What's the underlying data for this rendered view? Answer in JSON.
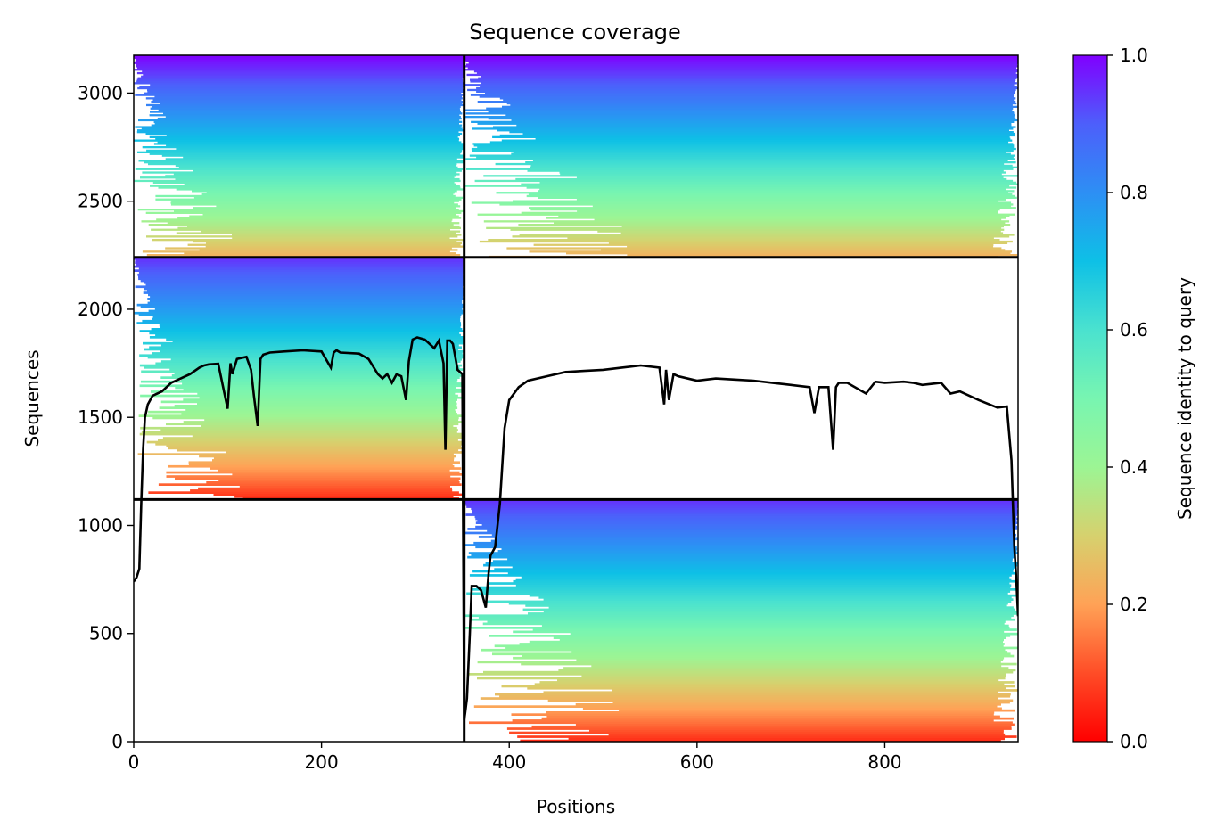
{
  "chart_data": {
    "type": "heatmap",
    "title": "Sequence coverage",
    "xlabel": "Positions",
    "ylabel": "Sequences",
    "xlim": [
      0,
      942
    ],
    "ylim": [
      0,
      3175
    ],
    "x_ticks": [
      0,
      200,
      400,
      600,
      800
    ],
    "y_ticks": [
      0,
      500,
      1000,
      1500,
      2000,
      2500,
      3000
    ],
    "colorbar": {
      "label": "Sequence identity to query",
      "range": [
        0,
        1
      ],
      "ticks": [
        0.0,
        0.2,
        0.4,
        0.6,
        0.8,
        1.0
      ],
      "colormap": "rainbow_r"
    },
    "block_boundaries": {
      "x": [
        352
      ],
      "y": [
        1120,
        2240
      ]
    },
    "blocks": [
      {
        "rows": [
          2240,
          3175
        ],
        "cols": [
          0,
          352
        ],
        "identity_top": 1.0,
        "identity_bottom": 0.22
      },
      {
        "rows": [
          2240,
          3175
        ],
        "cols": [
          352,
          942
        ],
        "identity_top": 1.0,
        "identity_bottom": 0.22
      },
      {
        "rows": [
          1120,
          2240
        ],
        "cols": [
          0,
          352
        ],
        "identity_top": 0.95,
        "identity_bottom": 0.05
      },
      {
        "rows": [
          0,
          1120
        ],
        "cols": [
          352,
          942
        ],
        "identity_top": 0.95,
        "identity_bottom": 0.05
      }
    ],
    "coverage_line": {
      "name": "coverage",
      "x": [
        0,
        3,
        6,
        8,
        10,
        12,
        15,
        20,
        30,
        40,
        50,
        60,
        70,
        75,
        80,
        90,
        100,
        103,
        105,
        110,
        120,
        125,
        128,
        132,
        135,
        138,
        145,
        160,
        180,
        200,
        210,
        213,
        216,
        220,
        240,
        250,
        260,
        265,
        270,
        275,
        280,
        285,
        290,
        293,
        297,
        302,
        310,
        320,
        325,
        330,
        332,
        334,
        337,
        340,
        345,
        350,
        352,
        353,
        355,
        358,
        360,
        365,
        370,
        375,
        378,
        380,
        385,
        390,
        395,
        400,
        410,
        420,
        440,
        460,
        480,
        500,
        520,
        540,
        560,
        565,
        567,
        570,
        575,
        580,
        600,
        620,
        640,
        660,
        680,
        700,
        720,
        725,
        730,
        740,
        745,
        748,
        751,
        760,
        780,
        790,
        800,
        820,
        830,
        840,
        860,
        870,
        880,
        900,
        920,
        930,
        935,
        938,
        940,
        942
      ],
      "y": [
        740,
        760,
        800,
        1100,
        1350,
        1500,
        1560,
        1600,
        1620,
        1660,
        1680,
        1700,
        1730,
        1740,
        1745,
        1748,
        1540,
        1750,
        1700,
        1770,
        1780,
        1720,
        1600,
        1460,
        1770,
        1790,
        1800,
        1805,
        1810,
        1805,
        1730,
        1800,
        1810,
        1800,
        1795,
        1770,
        1700,
        1680,
        1700,
        1660,
        1700,
        1690,
        1580,
        1760,
        1860,
        1870,
        1860,
        1820,
        1855,
        1750,
        1350,
        1855,
        1855,
        1840,
        1720,
        1700,
        100,
        130,
        200,
        500,
        720,
        720,
        700,
        620,
        780,
        860,
        900,
        1100,
        1450,
        1580,
        1640,
        1670,
        1690,
        1710,
        1715,
        1720,
        1730,
        1740,
        1730,
        1560,
        1720,
        1580,
        1700,
        1690,
        1670,
        1680,
        1675,
        1670,
        1660,
        1650,
        1640,
        1520,
        1640,
        1640,
        1350,
        1640,
        1660,
        1660,
        1610,
        1665,
        1660,
        1665,
        1660,
        1650,
        1660,
        1610,
        1620,
        1580,
        1545,
        1550,
        1300,
        900,
        760,
        580
      ]
    }
  }
}
